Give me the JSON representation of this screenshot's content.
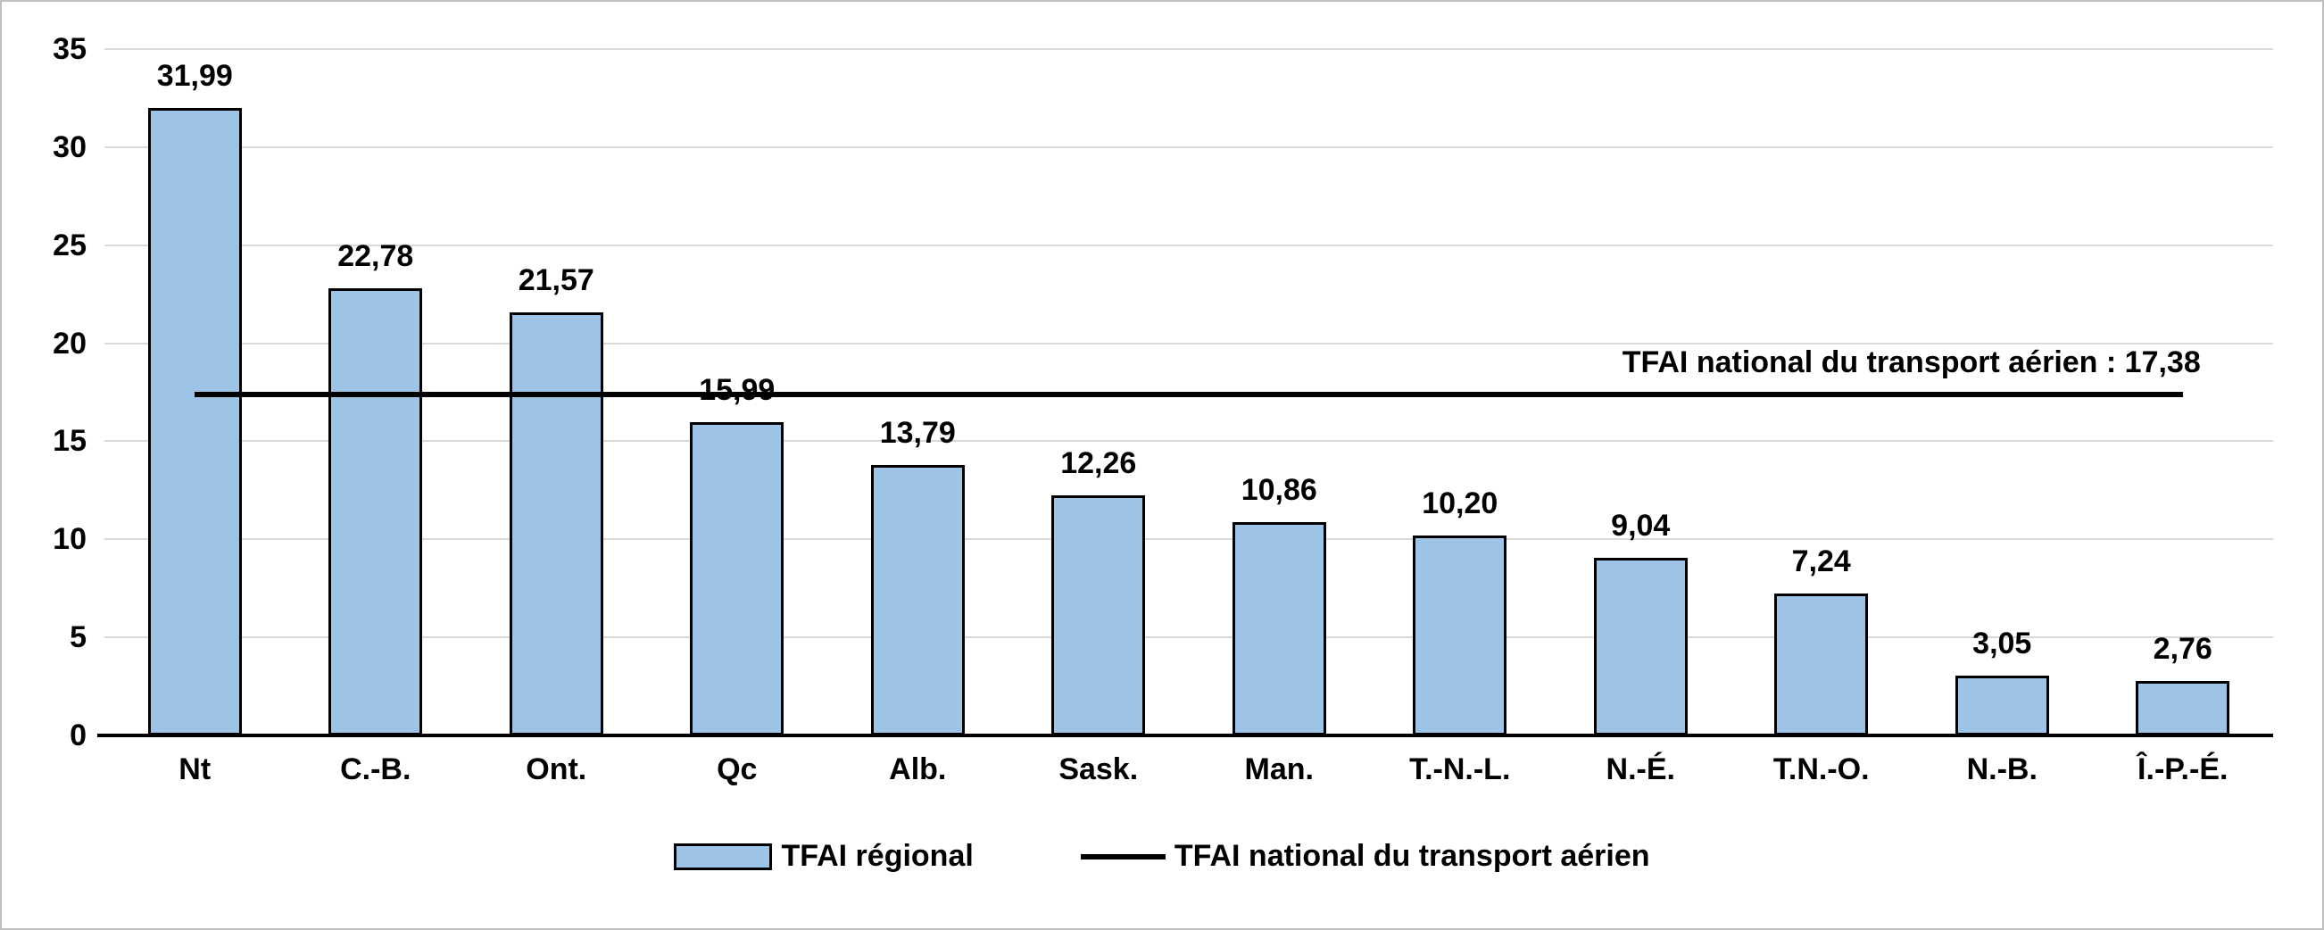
{
  "chart_data": {
    "type": "bar",
    "categories": [
      "Nt",
      "C.-B.",
      "Ont.",
      "Qc",
      "Alb.",
      "Sask.",
      "Man.",
      "T.-N.-L.",
      "N.-É.",
      "T.N.-O.",
      "N.-B.",
      "Î.-P.-É."
    ],
    "values": [
      31.99,
      22.78,
      21.57,
      15.99,
      13.79,
      12.26,
      10.86,
      10.2,
      9.04,
      7.24,
      3.05,
      2.76
    ],
    "value_labels": [
      "31,99",
      "22,78",
      "21,57",
      "15,99",
      "13,79",
      "12,26",
      "10,86",
      "10,20",
      "9,04",
      "7,24",
      "3,05",
      "2,76"
    ],
    "ylim": [
      0,
      35
    ],
    "yticks": [
      0,
      5,
      10,
      15,
      20,
      25,
      30,
      35
    ],
    "grid": true,
    "reference_line": {
      "value": 17.38,
      "label": "TFAI national du transport aérien : 17,38"
    },
    "legend": [
      {
        "type": "bar",
        "label": "TFAI régional"
      },
      {
        "type": "line",
        "label": "TFAI national du transport aérien"
      }
    ],
    "colors": {
      "bar_fill": "#9dc3e6",
      "bar_border": "#000000",
      "reference_line": "#000000",
      "gridline": "#d9d9d9"
    }
  }
}
